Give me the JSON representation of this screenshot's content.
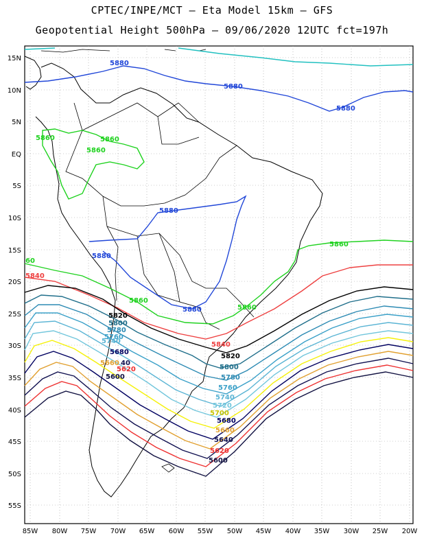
{
  "header": {
    "line1": "CPTEC/INPE/MCT –  Eta Model 15km – GFS",
    "line2": "Geopotential Height 500hPa – 09/06/2020 12UTC fct=197h"
  },
  "axes": {
    "lat_labels": [
      "15N",
      "10N",
      "5N",
      "EQ",
      "5S",
      "10S",
      "15S",
      "20S",
      "25S",
      "30S",
      "35S",
      "40S",
      "45S",
      "50S",
      "55S"
    ],
    "lon_labels": [
      "85W",
      "80W",
      "75W",
      "70W",
      "65W",
      "60W",
      "55W",
      "50W",
      "45W",
      "40W",
      "35W",
      "30W",
      "25W",
      "20W"
    ]
  },
  "contour_labels": {
    "c5880_a": "5880",
    "c5880_b": "5880",
    "c5880_c": "5880",
    "c5880_d": "5880",
    "c5880_e": "5880",
    "c5880_f": "5880",
    "c5860_a": "5860",
    "c5860_b": "5860",
    "c5860_c": "5860",
    "c5860_d": "5860",
    "c5860_e": "5860",
    "c5860_f": "5860",
    "c5860_edge": "60",
    "c5840_edge": "5840",
    "c5840_b": "5840",
    "c5820_a": "5820",
    "c5820_b": "5820",
    "c5800_a": "5800",
    "c5800_b": "5800",
    "c5780_a": "5780",
    "c5780_b": "5780",
    "c5760_a": "5760",
    "c5760_b": "5760",
    "c5740_a": "5740",
    "c5740_b": "5740",
    "c5720_a": "5720",
    "c5700_a": "5700",
    "c5680_a": "5680",
    "c5680_b": "5680",
    "c5660_a": "5660",
    "c5660_b": "5660",
    "c5640_a": "5640",
    "c5640_b": "40",
    "c5620_a": "5620",
    "c5620_b": "5620",
    "c5600_a": "5600",
    "c5600_b": "5600"
  },
  "colors": {
    "c5880": "#2046d8",
    "c5860": "#1fd21f",
    "c5840": "#ee4040",
    "c5820": "#000000",
    "c5800": "#1f6e8a",
    "c5780": "#2c8ab3",
    "c5760": "#3aa0c8",
    "c5740": "#5ab4d4",
    "c5720": "#72c6dc",
    "c5700": "#f5f10a",
    "c5680": "#000060",
    "c5660": "#e1a030",
    "c5640": "#101050",
    "c5620": "#ee3030",
    "c5600": "#101040",
    "c5900": "#20c0c0"
  }
}
